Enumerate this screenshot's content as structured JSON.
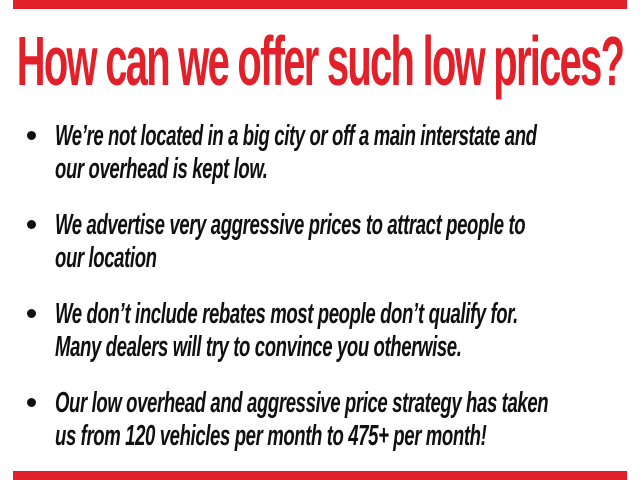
{
  "theme": {
    "accent_red": "#e2202a",
    "text_black": "#101010",
    "background": "#ffffff"
  },
  "title": {
    "text": "How can we offer such low prices?"
  },
  "bullets": [
    {
      "lines": [
        "We’re not located in a big city or off a main interstate and",
        "our overhead is kept low."
      ]
    },
    {
      "lines": [
        "We advertise very aggressive prices to attract people to",
        "our location"
      ]
    },
    {
      "lines": [
        "We don’t include rebates most people don’t qualify for.",
        "Many dealers will try to convince you otherwise."
      ]
    },
    {
      "lines": [
        "Our low overhead and aggressive price strategy has taken",
        "us from 120 vehicles per month to 475+ per month!"
      ]
    }
  ]
}
